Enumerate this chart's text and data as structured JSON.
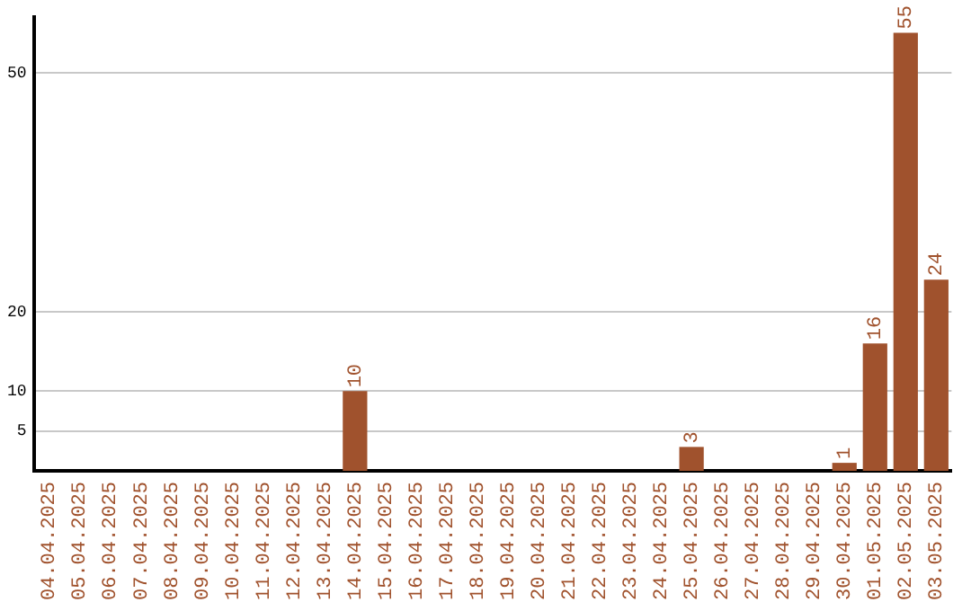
{
  "chart_data": {
    "type": "bar",
    "categories": [
      "04.04.2025",
      "05.04.2025",
      "06.04.2025",
      "07.04.2025",
      "08.04.2025",
      "09.04.2025",
      "10.04.2025",
      "11.04.2025",
      "12.04.2025",
      "13.04.2025",
      "14.04.2025",
      "15.04.2025",
      "16.04.2025",
      "17.04.2025",
      "18.04.2025",
      "19.04.2025",
      "20.04.2025",
      "21.04.2025",
      "22.04.2025",
      "23.04.2025",
      "24.04.2025",
      "25.04.2025",
      "26.04.2025",
      "27.04.2025",
      "28.04.2025",
      "29.04.2025",
      "30.04.2025",
      "01.05.2025",
      "02.05.2025",
      "03.05.2025"
    ],
    "values": [
      0,
      0,
      0,
      0,
      0,
      0,
      0,
      0,
      0,
      0,
      10,
      0,
      0,
      0,
      0,
      0,
      0,
      0,
      0,
      0,
      0,
      3,
      0,
      0,
      0,
      0,
      1,
      16,
      55,
      24
    ],
    "value_labels": [
      null,
      null,
      null,
      null,
      null,
      null,
      null,
      null,
      null,
      null,
      "10",
      null,
      null,
      null,
      null,
      null,
      null,
      null,
      null,
      null,
      null,
      "3",
      null,
      null,
      null,
      null,
      "1",
      "16",
      "55",
      "24"
    ],
    "color": "#a0522d",
    "ylim": [
      0,
      57
    ],
    "yticks": [
      5,
      10,
      20,
      50
    ],
    "grid": "y",
    "legend": false
  }
}
